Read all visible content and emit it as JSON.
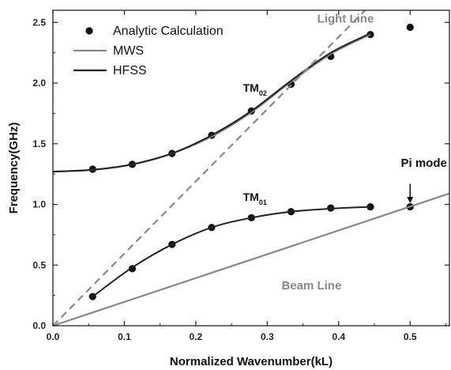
{
  "chart_data": {
    "type": "line",
    "xlabel": "Normalized Wavenumber(kL)",
    "ylabel": "Frequency(GHz)",
    "xlim": [
      0.0,
      0.555
    ],
    "ylim": [
      0.0,
      2.6
    ],
    "xticks": [
      "0.0",
      "0.1",
      "0.2",
      "0.3",
      "0.4",
      "0.5"
    ],
    "yticks": [
      "0.0",
      "0.5",
      "1.0",
      "1.5",
      "2.0",
      "2.5"
    ],
    "grid": false,
    "legend_position": "top-left",
    "legend": [
      {
        "label": "Analytic Calculation",
        "kind": "marker"
      },
      {
        "label": "MWS",
        "kind": "line",
        "color": "#888888"
      },
      {
        "label": "HFSS",
        "kind": "line",
        "color": "#222222"
      }
    ],
    "series": [
      {
        "name": "Analytic Calculation",
        "kind": "scatter",
        "points": [
          {
            "x": 0.0556,
            "y": 0.24
          },
          {
            "x": 0.1111,
            "y": 0.47
          },
          {
            "x": 0.1667,
            "y": 0.67
          },
          {
            "x": 0.2222,
            "y": 0.81
          },
          {
            "x": 0.2778,
            "y": 0.89
          },
          {
            "x": 0.3333,
            "y": 0.94
          },
          {
            "x": 0.3889,
            "y": 0.97
          },
          {
            "x": 0.4444,
            "y": 0.98
          },
          {
            "x": 0.5,
            "y": 0.98
          },
          {
            "x": 0.0556,
            "y": 1.29
          },
          {
            "x": 0.1111,
            "y": 1.33
          },
          {
            "x": 0.1667,
            "y": 1.42
          },
          {
            "x": 0.2222,
            "y": 1.57
          },
          {
            "x": 0.2778,
            "y": 1.77
          },
          {
            "x": 0.3333,
            "y": 1.99
          },
          {
            "x": 0.3889,
            "y": 2.22
          },
          {
            "x": 0.4444,
            "y": 2.4
          },
          {
            "x": 0.5,
            "y": 2.46
          }
        ]
      },
      {
        "name": "MWS",
        "kind": "line",
        "color": "#888888",
        "points": [
          {
            "x": 0.0,
            "y": 1.27
          },
          {
            "x": 0.0556,
            "y": 1.285
          },
          {
            "x": 0.1111,
            "y": 1.33
          },
          {
            "x": 0.1667,
            "y": 1.42
          },
          {
            "x": 0.2222,
            "y": 1.56
          },
          {
            "x": 0.2778,
            "y": 1.76
          },
          {
            "x": 0.3333,
            "y": 2.01
          },
          {
            "x": 0.3889,
            "y": 2.24
          },
          {
            "x": 0.4444,
            "y": 2.4
          }
        ]
      },
      {
        "name": "HFSS",
        "kind": "line",
        "color": "#222222",
        "points": [
          {
            "x": 0.0,
            "y": 1.27
          },
          {
            "x": 0.0556,
            "y": 1.285
          },
          {
            "x": 0.1111,
            "y": 1.33
          },
          {
            "x": 0.1667,
            "y": 1.42
          },
          {
            "x": 0.2222,
            "y": 1.57
          },
          {
            "x": 0.2778,
            "y": 1.77
          },
          {
            "x": 0.3333,
            "y": 2.02
          },
          {
            "x": 0.3889,
            "y": 2.25
          },
          {
            "x": 0.4444,
            "y": 2.41
          }
        ]
      },
      {
        "name": "HFSS TM01",
        "kind": "line",
        "color": "#222222",
        "points": [
          {
            "x": 0.0556,
            "y": 0.24
          },
          {
            "x": 0.1111,
            "y": 0.48
          },
          {
            "x": 0.1667,
            "y": 0.67
          },
          {
            "x": 0.2222,
            "y": 0.81
          },
          {
            "x": 0.2778,
            "y": 0.89
          },
          {
            "x": 0.3333,
            "y": 0.94
          },
          {
            "x": 0.3889,
            "y": 0.965
          },
          {
            "x": 0.4444,
            "y": 0.98
          }
        ]
      },
      {
        "name": "Light Line",
        "kind": "dashed",
        "color": "#888888",
        "points": [
          {
            "x": 0.0,
            "y": 0.0
          },
          {
            "x": 0.437,
            "y": 2.6
          }
        ]
      },
      {
        "name": "Beam Line",
        "kind": "line",
        "color": "#888888",
        "points": [
          {
            "x": 0.0,
            "y": 0.0
          },
          {
            "x": 0.555,
            "y": 1.09
          }
        ]
      }
    ],
    "annotations": [
      {
        "text": "Light Line",
        "x": 0.37,
        "y": 2.5,
        "color": "#888888"
      },
      {
        "text": "Beam Line",
        "x": 0.32,
        "y": 0.3,
        "color": "#888888"
      },
      {
        "text": "TM",
        "sub": "02",
        "x": 0.266,
        "y": 1.93,
        "color": "#111111"
      },
      {
        "text": "TM",
        "sub": "01",
        "x": 0.266,
        "y": 1.03,
        "color": "#111111"
      },
      {
        "text": "Pi mode",
        "x": 0.487,
        "y": 1.31,
        "color": "#111111"
      }
    ],
    "arrow": {
      "from": {
        "x": 0.5,
        "y": 1.17
      },
      "to": {
        "x": 0.5,
        "y": 1.01
      }
    }
  }
}
